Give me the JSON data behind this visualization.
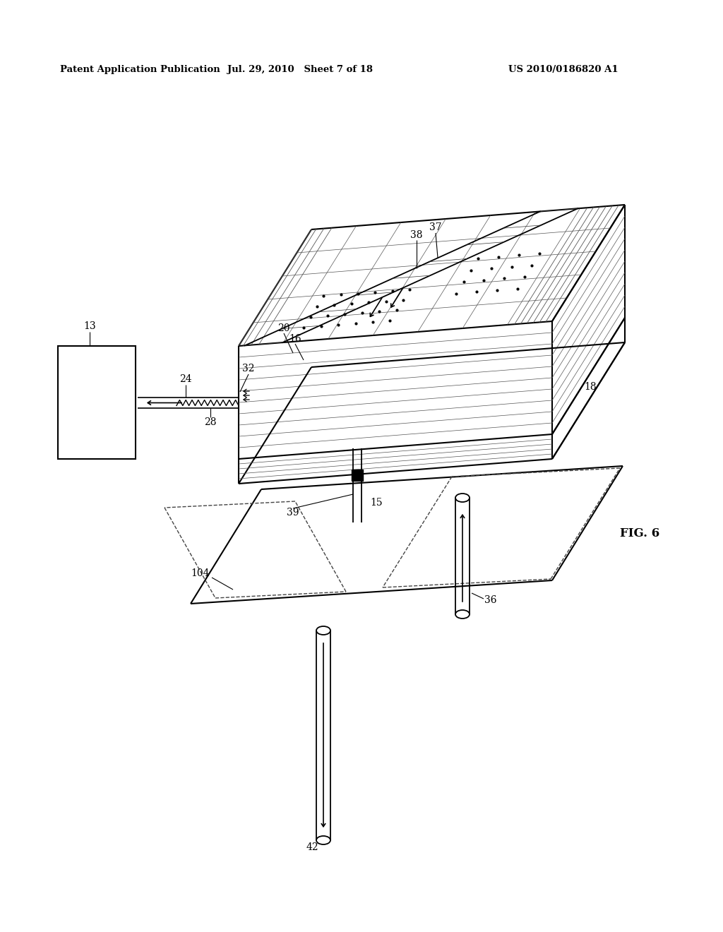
{
  "title_left": "Patent Application Publication",
  "title_mid": "Jul. 29, 2010   Sheet 7 of 18",
  "title_right": "US 2010/0186820 A1",
  "fig_label": "FIG. 6",
  "bg_color": "#ffffff",
  "line_color": "#000000"
}
